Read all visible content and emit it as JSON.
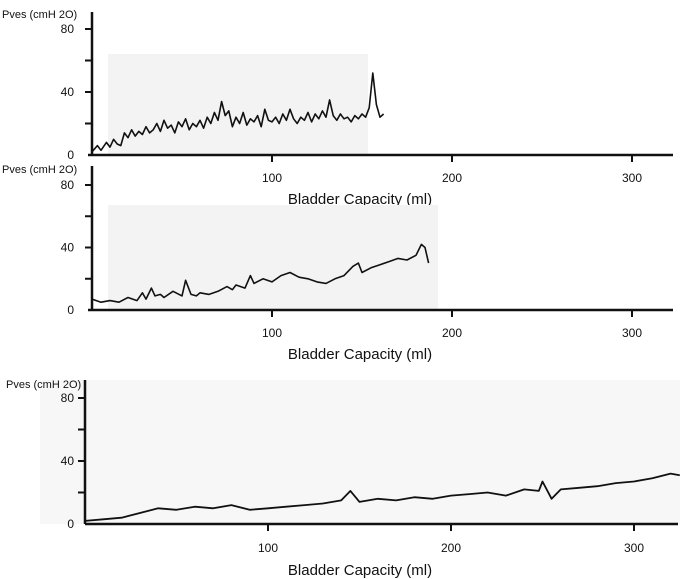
{
  "chart_data": [
    {
      "type": "line",
      "ylabel": "Pves (cmH 2O)",
      "xlabel": "Bladder  Capacity  (ml)",
      "xlim": [
        0,
        325
      ],
      "ylim": [
        0,
        80
      ],
      "x_ticks": [
        100,
        200,
        300
      ],
      "y_ticks": [
        0,
        40,
        80
      ],
      "grid": false,
      "series": [
        {
          "x": [
            0,
            3,
            5,
            8,
            10,
            12,
            14,
            16,
            18,
            20,
            22,
            24,
            26,
            28,
            30,
            32,
            34,
            36,
            38,
            40,
            42,
            44,
            46,
            48,
            50,
            52,
            54,
            56,
            58,
            60,
            62,
            64,
            66,
            68,
            70,
            72,
            74,
            76,
            78,
            80,
            82,
            84,
            86,
            88,
            90,
            92,
            94,
            96,
            98,
            100,
            102,
            104,
            106,
            108,
            110,
            112,
            114,
            116,
            118,
            120,
            122,
            124,
            126,
            128,
            130,
            132,
            134,
            136,
            138,
            140,
            142,
            144,
            146,
            148,
            150,
            152,
            154,
            156,
            158,
            160,
            162
          ],
          "y": [
            2,
            6,
            3,
            8,
            5,
            10,
            7,
            6,
            14,
            11,
            16,
            12,
            15,
            13,
            18,
            14,
            16,
            20,
            15,
            22,
            17,
            19,
            14,
            21,
            18,
            23,
            16,
            20,
            18,
            22,
            17,
            24,
            20,
            27,
            22,
            34,
            25,
            28,
            18,
            24,
            20,
            27,
            19,
            23,
            21,
            25,
            18,
            29,
            22,
            21,
            24,
            20,
            26,
            22,
            29,
            23,
            20,
            24,
            22,
            27,
            21,
            26,
            23,
            28,
            24,
            35,
            25,
            22,
            26,
            23,
            24,
            21,
            25,
            23,
            26,
            24,
            30,
            52,
            32,
            24,
            26
          ]
        }
      ]
    },
    {
      "type": "line",
      "ylabel": "Pves (cmH 2O)",
      "xlabel": "Bladder  Capacity  (ml)",
      "xlim": [
        0,
        325
      ],
      "ylim": [
        0,
        80
      ],
      "x_ticks": [
        100,
        200,
        300
      ],
      "y_ticks": [
        0,
        40,
        80
      ],
      "grid": false,
      "series": [
        {
          "x": [
            0,
            5,
            10,
            15,
            20,
            25,
            28,
            30,
            33,
            35,
            38,
            40,
            45,
            50,
            52,
            55,
            58,
            60,
            65,
            70,
            75,
            78,
            80,
            85,
            88,
            90,
            95,
            100,
            105,
            110,
            115,
            120,
            125,
            130,
            135,
            140,
            145,
            148,
            150,
            155,
            160,
            165,
            170,
            175,
            180,
            183,
            185,
            187
          ],
          "y": [
            7,
            5,
            6,
            5,
            8,
            6,
            11,
            7,
            14,
            9,
            10,
            8,
            12,
            9,
            19,
            10,
            9,
            11,
            10,
            12,
            15,
            13,
            16,
            14,
            22,
            17,
            20,
            18,
            22,
            24,
            21,
            20,
            18,
            17,
            20,
            22,
            28,
            30,
            24,
            27,
            29,
            31,
            33,
            32,
            35,
            42,
            40,
            30
          ]
        }
      ]
    },
    {
      "type": "line",
      "ylabel": "Pves (cmH 2O)",
      "xlabel": "Bladder  Capacity  (ml)",
      "xlim": [
        0,
        325
      ],
      "ylim": [
        0,
        80
      ],
      "x_ticks": [
        100,
        200,
        300
      ],
      "y_ticks": [
        0,
        40,
        80
      ],
      "grid": false,
      "series": [
        {
          "x": [
            0,
            10,
            20,
            30,
            40,
            50,
            60,
            70,
            80,
            90,
            100,
            110,
            120,
            130,
            140,
            145,
            150,
            160,
            170,
            180,
            190,
            200,
            210,
            220,
            230,
            240,
            248,
            250,
            255,
            260,
            270,
            280,
            290,
            300,
            310,
            320,
            325
          ],
          "y": [
            2,
            3,
            4,
            7,
            10,
            9,
            11,
            10,
            12,
            9,
            10,
            11,
            12,
            13,
            15,
            21,
            14,
            16,
            15,
            17,
            16,
            18,
            19,
            20,
            18,
            22,
            21,
            27,
            16,
            22,
            23,
            24,
            26,
            27,
            29,
            32,
            31
          ]
        }
      ]
    }
  ]
}
